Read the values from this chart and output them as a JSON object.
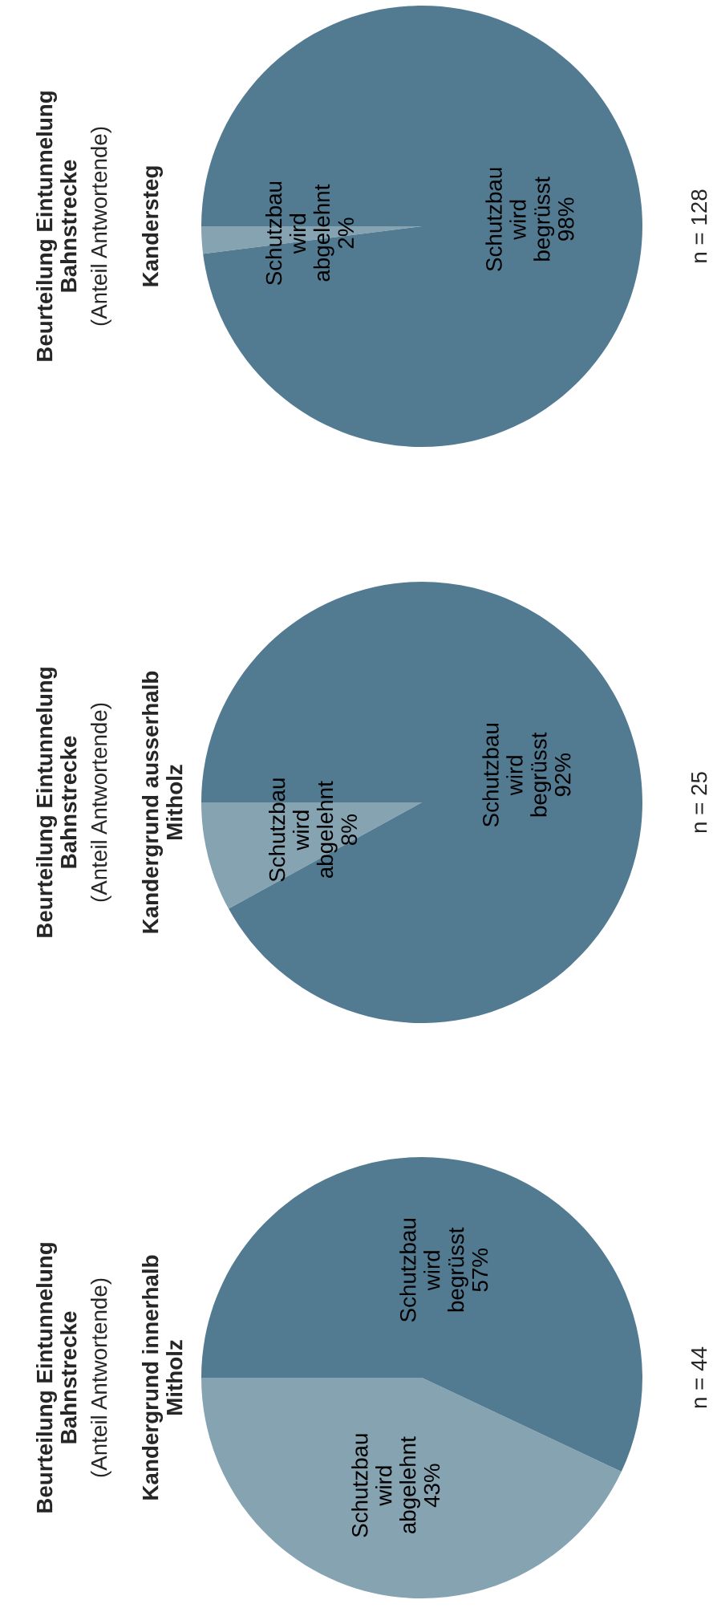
{
  "chart_data": [
    {
      "type": "pie",
      "title": "Beurteilung Eintunnelung\nBahnstrecke",
      "subtitle": "(Anteil Antwortende)",
      "annotations": [
        "Kandergrund innerhalb\nMitholz",
        "n = 44"
      ],
      "categories": [
        "Schutzbau wird abgelehnt",
        "Schutzbau wird begrüsst"
      ],
      "values": [
        43,
        57
      ],
      "value_labels": [
        "43%",
        "57%"
      ],
      "colors": [
        "#86a3b2",
        "#527b92"
      ],
      "legend": false
    },
    {
      "type": "pie",
      "title": "Beurteilung Eintunnelung\nBahnstrecke",
      "subtitle": "(Anteil Antwortende)",
      "annotations": [
        "Kandergrund ausserhalb\nMitholz",
        "n = 25"
      ],
      "categories": [
        "Schutzbau wird abgelehnt",
        "Schutzbau wird begrüsst"
      ],
      "values": [
        8,
        92
      ],
      "value_labels": [
        "8%",
        "92%"
      ],
      "colors": [
        "#86a3b2",
        "#527b92"
      ],
      "legend": false
    },
    {
      "type": "pie",
      "title": "Beurteilung Eintunnelung\nBahnstrecke",
      "subtitle": "(Anteil Antwortende)",
      "annotations": [
        "Kandersteg",
        "n = 128"
      ],
      "categories": [
        "Schutzbau wird abgelehnt",
        "Schutzbau wird begrüsst"
      ],
      "values": [
        2,
        98
      ],
      "value_labels": [
        "2%",
        "98%"
      ],
      "colors": [
        "#86a3b2",
        "#527b92"
      ],
      "legend": false
    }
  ]
}
